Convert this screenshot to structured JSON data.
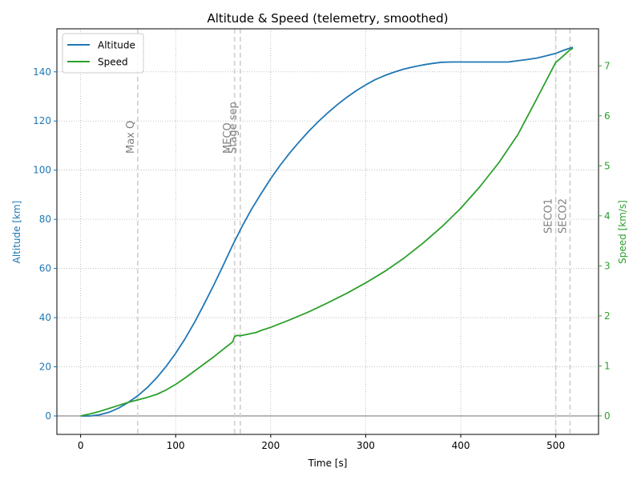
{
  "chart_data": {
    "type": "line",
    "title": "Altitude & Speed (telemetry, smoothed)",
    "xlabel": "Time [s]",
    "ylabel_left": "Altitude [km]",
    "ylabel_right": "Speed [km/s]",
    "xlim": [
      -25,
      545
    ],
    "ylim_left": [
      -7.5,
      157.5
    ],
    "ylim_right": [
      -0.37,
      7.74
    ],
    "x_ticks": [
      0,
      100,
      200,
      300,
      400,
      500
    ],
    "y_left_ticks": [
      0,
      20,
      40,
      60,
      80,
      100,
      120,
      140
    ],
    "y_right_ticks": [
      0,
      1,
      2,
      3,
      4,
      5,
      6,
      7
    ],
    "grid": true,
    "legend_position": "top-left",
    "colors": {
      "altitude": "#1f77b4",
      "speed": "#2ca02c",
      "events": "#d3d3d3",
      "event_text": "#808080",
      "baseline": "#808080"
    },
    "events": [
      {
        "name": "Max Q",
        "t": 60
      },
      {
        "name": "MECO",
        "t": 162
      },
      {
        "name": "Stage sep",
        "t": 168
      },
      {
        "name": "SECO1",
        "t": 500
      },
      {
        "name": "SECO2",
        "t": 515
      }
    ],
    "series": [
      {
        "name": "Altitude",
        "axis": "left",
        "x": [
          0,
          10,
          20,
          30,
          40,
          50,
          60,
          70,
          80,
          90,
          100,
          110,
          120,
          130,
          140,
          150,
          160,
          170,
          180,
          190,
          200,
          210,
          220,
          230,
          240,
          250,
          260,
          270,
          280,
          290,
          300,
          310,
          320,
          330,
          340,
          350,
          360,
          370,
          380,
          390,
          400,
          420,
          440,
          450,
          460,
          470,
          480,
          490,
          500,
          510,
          518
        ],
        "values": [
          0,
          0,
          0.5,
          1.5,
          3.2,
          5.5,
          8.2,
          11.5,
          15.5,
          20.2,
          25.5,
          31.5,
          38.2,
          45.5,
          53.2,
          61.2,
          69.5,
          77.2,
          84.2,
          90.5,
          96.5,
          102,
          107,
          111.5,
          115.8,
          119.7,
          123.3,
          126.6,
          129.6,
          132.3,
          134.7,
          136.8,
          138.5,
          139.9,
          141.1,
          142,
          142.8,
          143.4,
          143.9,
          144,
          144,
          144,
          144,
          144,
          144.5,
          145,
          145.6,
          146.5,
          147.5,
          149,
          150
        ]
      },
      {
        "name": "Speed",
        "axis": "right",
        "x": [
          0,
          10,
          20,
          30,
          40,
          50,
          60,
          70,
          80,
          90,
          100,
          110,
          120,
          130,
          140,
          150,
          160,
          162,
          165,
          168,
          175,
          185,
          190,
          200,
          220,
          240,
          260,
          280,
          300,
          320,
          340,
          360,
          380,
          400,
          420,
          440,
          460,
          480,
          500,
          505,
          515,
          518
        ],
        "values": [
          0,
          0.04,
          0.09,
          0.15,
          0.21,
          0.27,
          0.32,
          0.37,
          0.43,
          0.52,
          0.63,
          0.76,
          0.9,
          1.04,
          1.18,
          1.33,
          1.48,
          1.59,
          1.61,
          1.6,
          1.63,
          1.67,
          1.71,
          1.77,
          1.92,
          2.08,
          2.26,
          2.45,
          2.66,
          2.89,
          3.15,
          3.45,
          3.78,
          4.15,
          4.58,
          5.06,
          5.62,
          6.34,
          7.07,
          7.15,
          7.32,
          7.35
        ]
      }
    ]
  }
}
